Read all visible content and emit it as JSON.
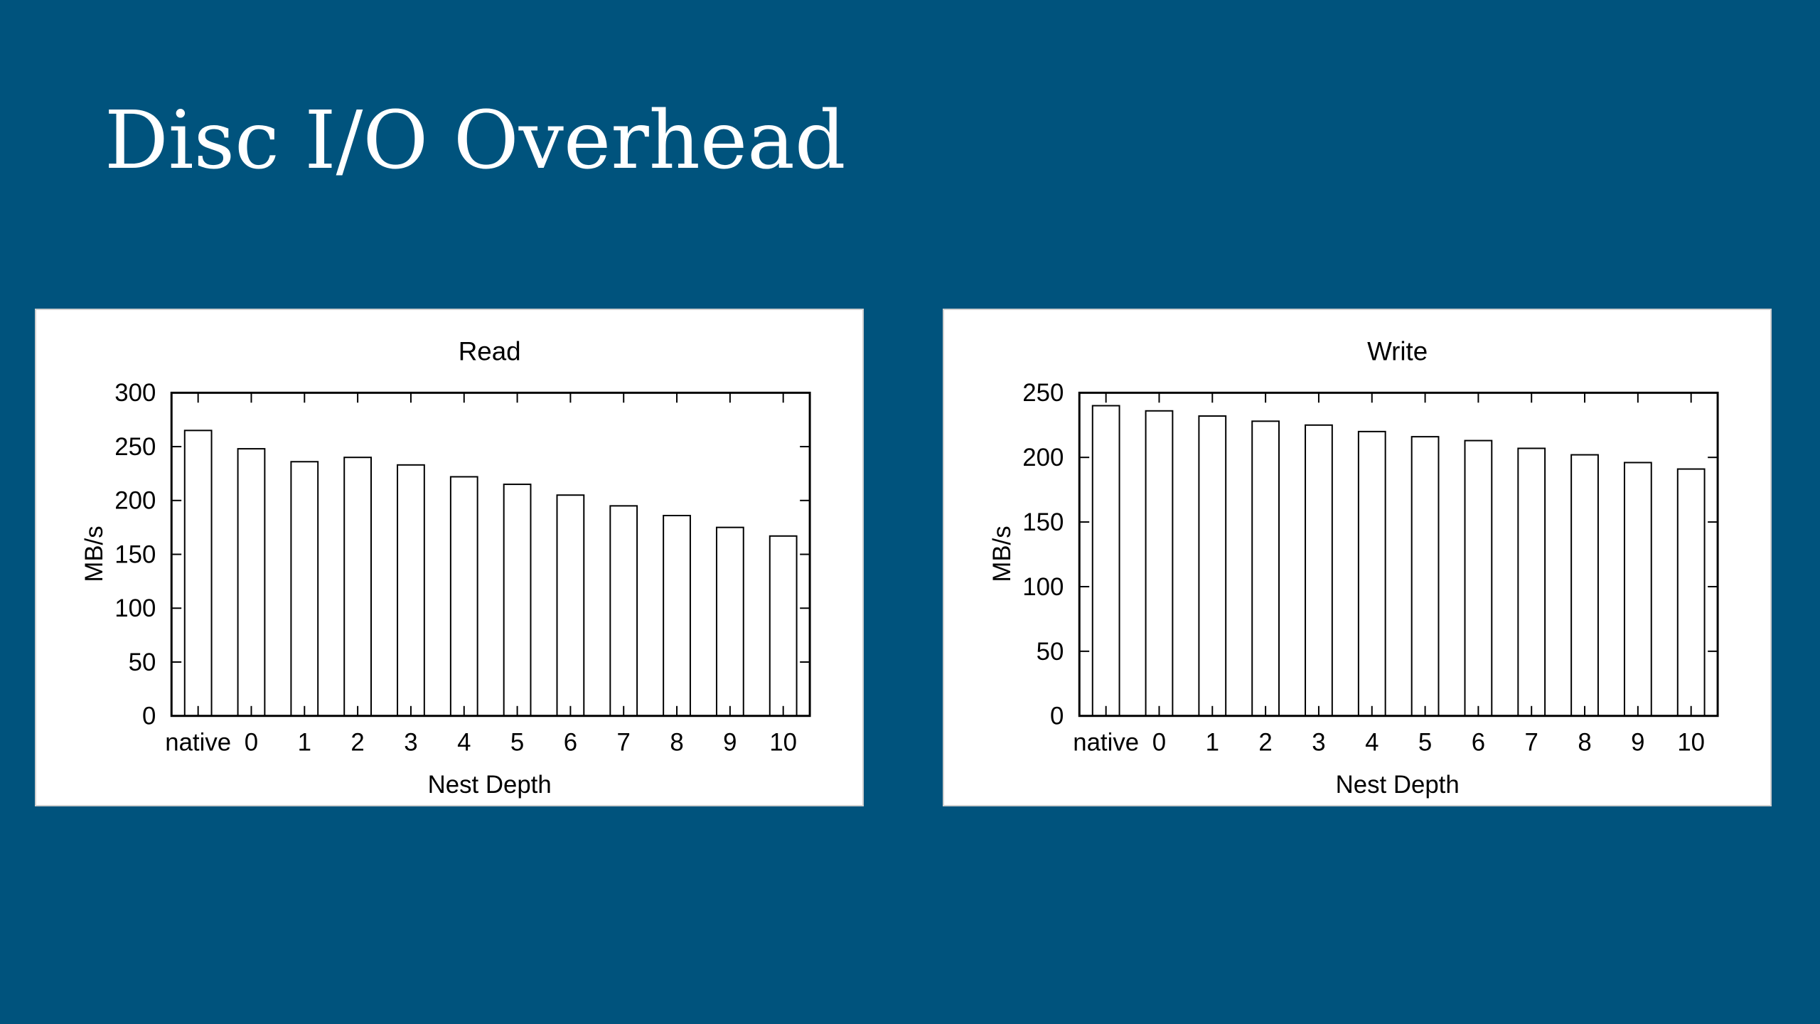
{
  "slide": {
    "title": "Disc I/O Overhead",
    "background_color": "#00537d",
    "title_color": "#ffffff"
  },
  "chart_data": [
    {
      "type": "bar",
      "title": "Read",
      "xlabel": "Nest Depth",
      "ylabel": "MB/s",
      "categories": [
        "native",
        "0",
        "1",
        "2",
        "3",
        "4",
        "5",
        "6",
        "7",
        "8",
        "9",
        "10"
      ],
      "values": [
        265,
        248,
        236,
        240,
        233,
        222,
        215,
        205,
        195,
        186,
        175,
        167
      ],
      "ylim": [
        0,
        300
      ],
      "yticks": [
        0,
        50,
        100,
        150,
        200,
        250,
        300
      ],
      "grid": false,
      "bar_fill": "#ffffff",
      "bar_stroke": "#000000"
    },
    {
      "type": "bar",
      "title": "Write",
      "xlabel": "Nest Depth",
      "ylabel": "MB/s",
      "categories": [
        "native",
        "0",
        "1",
        "2",
        "3",
        "4",
        "5",
        "6",
        "7",
        "8",
        "9",
        "10"
      ],
      "values": [
        240,
        236,
        232,
        228,
        225,
        220,
        216,
        213,
        207,
        202,
        196,
        191
      ],
      "ylim": [
        0,
        250
      ],
      "yticks": [
        0,
        50,
        100,
        150,
        200,
        250
      ],
      "grid": false,
      "bar_fill": "#ffffff",
      "bar_stroke": "#000000"
    }
  ]
}
